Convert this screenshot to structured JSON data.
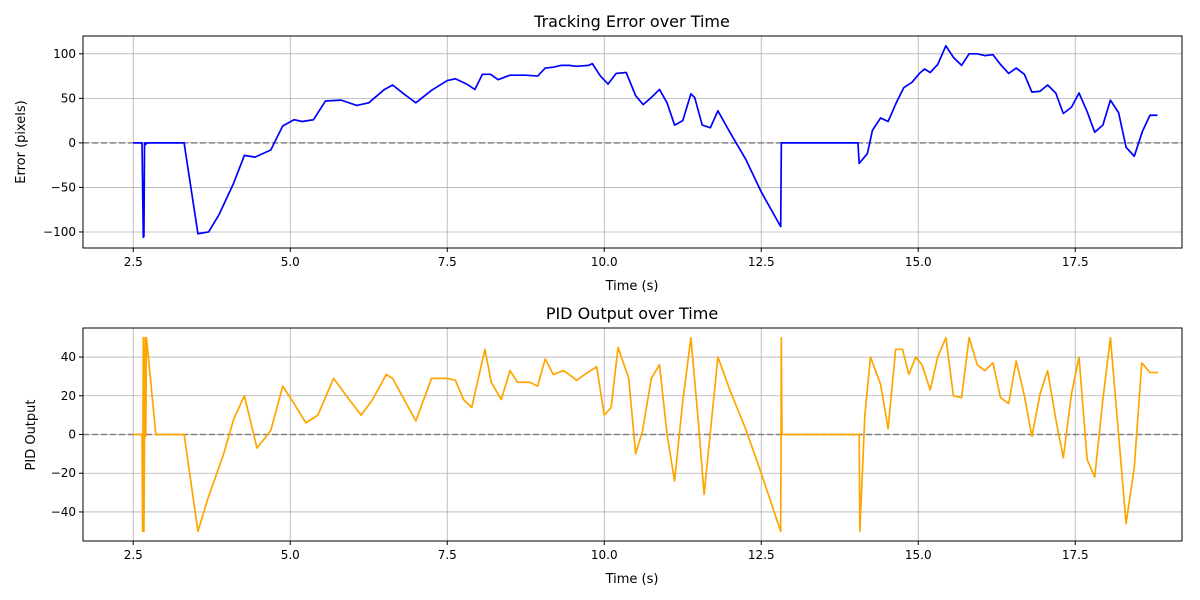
{
  "chart_data": [
    {
      "type": "line",
      "title": "Tracking Error over Time",
      "xlabel": "Time (s)",
      "ylabel": "Error (pixels)",
      "xlim": [
        1.7,
        19.2
      ],
      "ylim": [
        -118,
        120
      ],
      "xticks": [
        2.5,
        5.0,
        7.5,
        10.0,
        12.5,
        15.0,
        17.5
      ],
      "xtick_labels": [
        "2.5",
        "5.0",
        "7.5",
        "10.0",
        "12.5",
        "15.0",
        "17.5"
      ],
      "yticks": [
        -100,
        -50,
        0,
        50,
        100
      ],
      "ytick_labels": [
        "−100",
        "−50",
        "0",
        "50",
        "100"
      ],
      "grid": true,
      "reference_line": {
        "y": 0,
        "style": "dashed",
        "color": "#808080"
      },
      "series": [
        {
          "color": "#0000ff",
          "x": [
            2.5,
            2.64,
            2.66,
            2.67,
            2.68,
            2.69,
            2.7,
            2.71,
            2.74,
            3.31,
            3.53,
            3.7,
            3.87,
            4.1,
            4.27,
            4.44,
            4.69,
            4.88,
            5.06,
            5.19,
            5.37,
            5.56,
            5.81,
            6.06,
            6.25,
            6.5,
            6.63,
            6.81,
            7.0,
            7.25,
            7.5,
            7.63,
            7.81,
            7.94,
            8.06,
            8.19,
            8.31,
            8.5,
            8.75,
            8.94,
            9.06,
            9.19,
            9.31,
            9.44,
            9.56,
            9.75,
            9.81,
            9.94,
            10.06,
            10.19,
            10.35,
            10.5,
            10.62,
            10.75,
            10.88,
            11.0,
            11.12,
            11.25,
            11.38,
            11.44,
            11.56,
            11.69,
            11.81,
            12.0,
            12.25,
            12.5,
            12.81,
            12.82,
            14.04,
            14.06,
            14.19,
            14.27,
            14.4,
            14.52,
            14.65,
            14.77,
            14.9,
            15.02,
            15.1,
            15.19,
            15.31,
            15.44,
            15.56,
            15.69,
            15.81,
            15.94,
            16.06,
            16.19,
            16.31,
            16.44,
            16.56,
            16.69,
            16.81,
            16.94,
            17.06,
            17.19,
            17.31,
            17.44,
            17.56,
            17.69,
            17.81,
            17.94,
            18.06,
            18.19,
            18.31,
            18.44,
            18.57,
            18.69,
            18.81
          ],
          "y": [
            0,
            0,
            -106,
            -105,
            0,
            -2,
            0,
            -1,
            0,
            0,
            -102,
            -100,
            -80,
            -45,
            -14,
            -16,
            -8,
            19,
            26,
            24,
            26,
            47,
            48,
            42,
            45,
            60,
            65,
            55,
            45,
            59,
            70,
            72,
            66,
            60,
            77,
            77,
            71,
            76,
            76,
            75,
            84,
            85,
            87,
            87,
            86,
            87,
            89,
            75,
            66,
            78,
            79,
            53,
            43,
            51,
            60,
            45,
            20,
            25,
            55,
            51,
            20,
            17,
            36,
            12,
            -18,
            -55,
            -94,
            0,
            0,
            -23,
            -12,
            14,
            28,
            24,
            45,
            62,
            68,
            78,
            83,
            79,
            88,
            109,
            96,
            87,
            100,
            100,
            98,
            99,
            88,
            78,
            84,
            77,
            57,
            58,
            65,
            56,
            33,
            40,
            56,
            35,
            12,
            20,
            48,
            34,
            -5,
            -15,
            13,
            31,
            31
          ]
        }
      ]
    },
    {
      "type": "line",
      "title": "PID Output over Time",
      "xlabel": "Time (s)",
      "ylabel": "PID Output",
      "xlim": [
        1.7,
        19.2
      ],
      "ylim": [
        -55,
        55
      ],
      "xticks": [
        2.5,
        5.0,
        7.5,
        10.0,
        12.5,
        15.0,
        17.5
      ],
      "xtick_labels": [
        "2.5",
        "5.0",
        "7.5",
        "10.0",
        "12.5",
        "15.0",
        "17.5"
      ],
      "yticks": [
        -40,
        -20,
        0,
        20,
        40
      ],
      "ytick_labels": [
        "−40",
        "−20",
        "0",
        "20",
        "40"
      ],
      "grid": true,
      "reference_line": {
        "y": 0,
        "style": "dashed",
        "color": "#808080"
      },
      "series": [
        {
          "color": "#ffa500",
          "x": [
            2.5,
            2.64,
            2.65,
            2.66,
            2.67,
            2.68,
            2.69,
            2.7,
            2.71,
            2.72,
            2.86,
            3.31,
            3.53,
            3.69,
            3.94,
            4.1,
            4.27,
            4.47,
            4.69,
            4.88,
            5.06,
            5.25,
            5.44,
            5.69,
            5.94,
            6.13,
            6.31,
            6.53,
            6.63,
            7.0,
            7.25,
            7.5,
            7.63,
            7.76,
            7.89,
            8.1,
            8.2,
            8.36,
            8.5,
            8.62,
            8.81,
            8.94,
            9.06,
            9.19,
            9.35,
            9.44,
            9.56,
            9.69,
            9.88,
            10.0,
            10.11,
            10.22,
            10.39,
            10.5,
            10.61,
            10.75,
            10.88,
            11.0,
            11.12,
            11.25,
            11.38,
            11.5,
            11.59,
            11.81,
            12.0,
            12.25,
            12.5,
            12.81,
            12.82,
            12.83,
            14.06,
            14.07,
            14.15,
            14.24,
            14.4,
            14.52,
            14.64,
            14.75,
            14.85,
            14.96,
            15.06,
            15.19,
            15.31,
            15.44,
            15.56,
            15.69,
            15.81,
            15.94,
            16.06,
            16.19,
            16.31,
            16.44,
            16.56,
            16.69,
            16.81,
            16.94,
            17.06,
            17.19,
            17.31,
            17.44,
            17.56,
            17.69,
            17.81,
            17.94,
            18.06,
            18.19,
            18.31,
            18.44,
            18.56,
            18.69,
            18.82
          ],
          "y": [
            0,
            0,
            -50,
            50,
            -50,
            0,
            50,
            -1,
            50,
            47,
            0,
            0,
            -50,
            -33,
            -10,
            8,
            20,
            -7,
            2,
            25,
            16,
            6,
            10,
            29,
            18,
            10,
            18,
            31,
            29,
            7,
            29,
            29,
            28,
            18,
            14,
            44,
            27,
            18,
            33,
            27,
            27,
            25,
            39,
            31,
            33,
            31,
            28,
            31,
            35,
            10,
            14,
            45,
            29,
            -10,
            2,
            29,
            36,
            0,
            -24,
            17,
            50,
            6,
            -31,
            40,
            23,
            3,
            -20,
            -50,
            50,
            0,
            0,
            -50,
            10,
            40,
            26,
            3,
            44,
            44,
            31,
            40,
            36,
            23,
            40,
            50,
            20,
            19,
            50,
            36,
            33,
            37,
            19,
            16,
            38,
            20,
            -1,
            21,
            33,
            8,
            -12,
            21,
            40,
            -13,
            -22,
            18,
            50,
            0,
            -46,
            -17,
            37,
            32,
            32
          ]
        }
      ]
    }
  ]
}
